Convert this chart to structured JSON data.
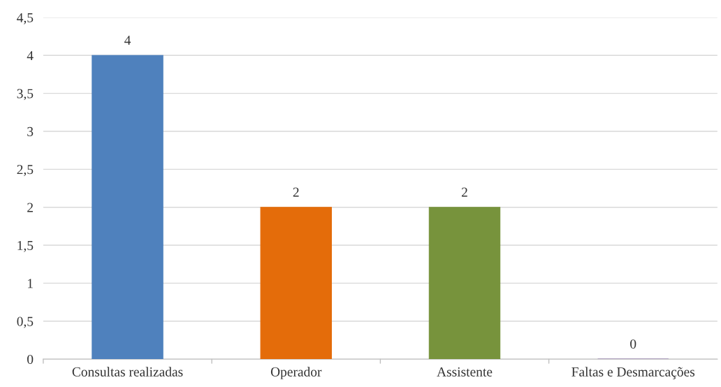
{
  "chart_data": {
    "type": "bar",
    "categories": [
      "Consultas realizadas",
      "Operador",
      "Assistente",
      "Faltas e Desmarcações"
    ],
    "values": [
      4,
      2,
      2,
      0
    ],
    "colors": [
      "#4f81bd",
      "#e46c0a",
      "#77933c",
      "#8064a2"
    ],
    "ylim": [
      0,
      4.5
    ],
    "yticks": [
      {
        "value": 0,
        "label": "0"
      },
      {
        "value": 0.5,
        "label": "0,5"
      },
      {
        "value": 1,
        "label": "1"
      },
      {
        "value": 1.5,
        "label": "1,5"
      },
      {
        "value": 2,
        "label": "2"
      },
      {
        "value": 2.5,
        "label": "2,5"
      },
      {
        "value": 3,
        "label": "3"
      },
      {
        "value": 3.5,
        "label": "3,5"
      },
      {
        "value": 4,
        "label": "4"
      },
      {
        "value": 4.5,
        "label": "4,5"
      }
    ],
    "grid": "y",
    "data_labels": true
  }
}
